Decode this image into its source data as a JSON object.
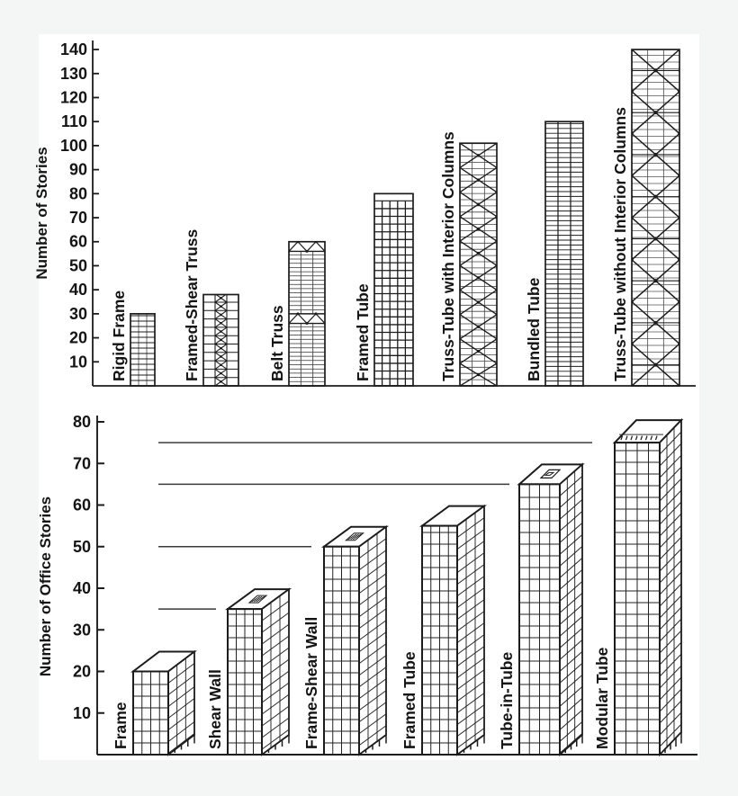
{
  "figure": {
    "background": "#f4f5f5",
    "panel_background": "#ffffff",
    "ink_color": "#1c1c1c"
  },
  "chart_data": [
    {
      "type": "bar",
      "title": "",
      "ylabel": "Number of Stories",
      "ylim": [
        0,
        145
      ],
      "yticks": [
        10,
        20,
        30,
        40,
        50,
        60,
        70,
        80,
        90,
        100,
        110,
        120,
        130,
        140
      ],
      "grid": false,
      "legend": "none",
      "categories": [
        "Rigid Frame",
        "Framed-Shear Truss",
        "Belt Truss",
        "Framed Tube",
        "Truss-Tube with Interior Columns",
        "Bundled Tube",
        "Truss-Tube without Interior Columns"
      ],
      "values": [
        30,
        38,
        60,
        80,
        101,
        110,
        140
      ],
      "bar_patterns": [
        "ladder-floors",
        "core-x-bracing",
        "belt-truss-bands",
        "framed-tube-grid",
        "dense-x-truss-grid",
        "bundled-floor-lines",
        "large-x-truss-grid"
      ],
      "belt_band_stories": [
        [
          56,
          60
        ],
        [
          26,
          30
        ]
      ]
    },
    {
      "type": "bar",
      "style": "pictorial-3d-buildings",
      "title": "",
      "ylabel": "Number of Office Stories",
      "ylim": [
        0,
        82
      ],
      "yticks": [
        10,
        20,
        30,
        40,
        50,
        60,
        70,
        80
      ],
      "grid": false,
      "legend": "none",
      "categories": [
        "Frame",
        "Shear Wall",
        "Frame-Shear Wall",
        "Framed Tube",
        "Tube-in-Tube",
        "Modular Tube"
      ],
      "values": [
        20,
        35,
        50,
        55,
        65,
        75
      ],
      "roof_top_values": [
        25,
        40,
        55,
        60,
        70,
        79
      ],
      "reference_lines": [
        {
          "story": 35,
          "marks_category": "Shear Wall"
        },
        {
          "story": 50,
          "marks_category": "Frame-Shear Wall"
        },
        {
          "story": 65,
          "marks_category": "Tube-in-Tube"
        },
        {
          "story": 75,
          "marks_category": "Modular Tube"
        }
      ]
    }
  ]
}
